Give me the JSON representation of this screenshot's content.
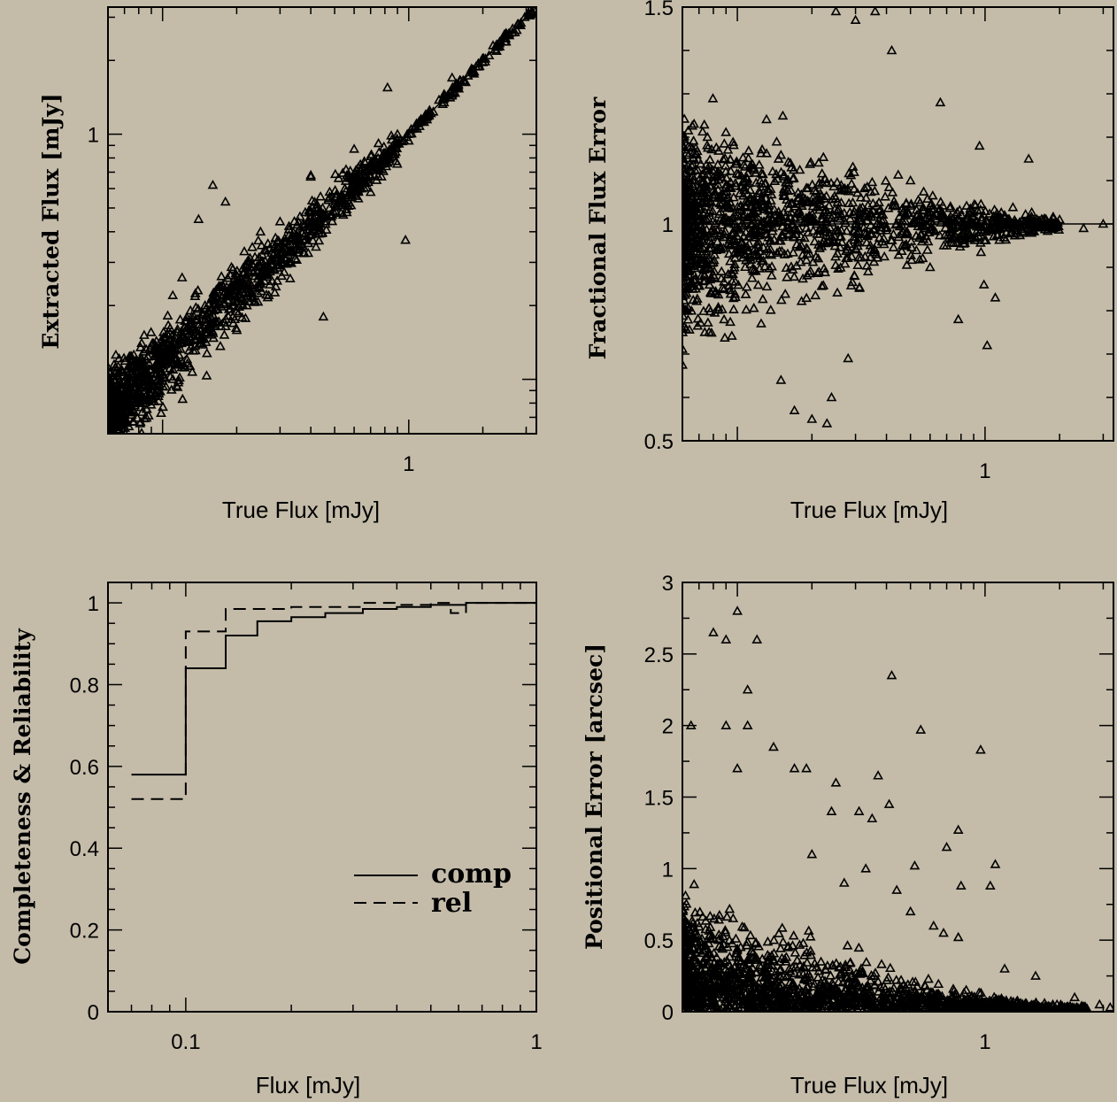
{
  "chart_data": [
    {
      "type": "scatter",
      "id": "p1",
      "xlabel": "True Flux [mJy]",
      "ylabel": "Extracted Flux [mJy]",
      "xscale": "log",
      "yscale": "log",
      "xlim": [
        0.06,
        3.3
      ],
      "ylim": [
        0.06,
        3.3
      ],
      "xticklabels": [
        {
          "value": 1,
          "label": "1"
        }
      ],
      "yticklabels": [
        {
          "value": 1,
          "label": "1"
        }
      ],
      "marker": "triangle",
      "line": {
        "x": [
          0.06,
          3.3
        ],
        "y": [
          0.06,
          3.3
        ]
      },
      "points": [
        [
          0.82,
          1.55
        ],
        [
          0.97,
          0.37
        ],
        [
          0.7,
          0.72
        ],
        [
          0.6,
          0.87
        ],
        [
          0.38,
          0.48
        ],
        [
          0.16,
          0.62
        ],
        [
          0.18,
          0.53
        ],
        [
          0.4,
          0.67
        ],
        [
          0.4,
          0.68
        ],
        [
          0.7,
          0.58
        ],
        [
          0.3,
          0.44
        ],
        [
          1.0,
          0.94
        ],
        [
          1.5,
          1.7
        ],
        [
          2.2,
          2.3
        ],
        [
          3.1,
          3.2
        ],
        [
          0.45,
          0.18
        ],
        [
          0.22,
          0.2
        ],
        [
          0.27,
          0.22
        ],
        [
          0.12,
          0.26
        ],
        [
          0.11,
          0.22
        ],
        [
          0.14,
          0.45
        ],
        [
          0.25,
          0.4
        ],
        [
          0.5,
          0.52
        ],
        [
          0.55,
          0.6
        ],
        [
          0.9,
          1.0
        ],
        [
          1.2,
          1.2
        ],
        [
          1.8,
          1.85
        ],
        [
          2.7,
          2.6
        ],
        [
          0.33,
          0.3
        ],
        [
          0.65,
          0.65
        ]
      ],
      "cloud": {
        "x_range": [
          0.06,
          0.9
        ],
        "scatter_dex": 0.08
      }
    },
    {
      "type": "scatter",
      "id": "p2",
      "xlabel": "True Flux [mJy]",
      "ylabel": "Fractional Flux Error",
      "xscale": "log",
      "yscale": "linear",
      "xlim": [
        0.06,
        3.3
      ],
      "ylim": [
        0.5,
        1.5
      ],
      "xticklabels": [
        {
          "value": 1,
          "label": "1"
        }
      ],
      "yticklabels": [
        {
          "value": 0.5,
          "label": "0.5"
        },
        {
          "value": 1,
          "label": "1"
        },
        {
          "value": 1.5,
          "label": "1.5"
        }
      ],
      "marker": "triangle",
      "line": {
        "x": [
          0.06,
          3.3
        ],
        "y": [
          1,
          1
        ]
      },
      "points": [
        [
          0.66,
          1.28
        ],
        [
          0.95,
          1.18
        ],
        [
          1.5,
          1.15
        ],
        [
          0.99,
          0.86
        ],
        [
          0.78,
          0.78
        ],
        [
          1.02,
          0.72
        ],
        [
          1.1,
          0.83
        ],
        [
          0.2,
          0.55
        ],
        [
          0.24,
          0.6
        ],
        [
          0.23,
          0.54
        ],
        [
          0.28,
          0.69
        ],
        [
          0.17,
          0.57
        ],
        [
          0.15,
          0.64
        ],
        [
          0.3,
          1.47
        ],
        [
          0.36,
          1.49
        ],
        [
          0.42,
          1.4
        ],
        [
          0.25,
          1.49
        ],
        [
          2.5,
          0.99
        ],
        [
          3.0,
          1.0
        ],
        [
          2.0,
          1.01
        ],
        [
          1.6,
          1.0
        ],
        [
          1.2,
          1.02
        ],
        [
          0.7,
          0.95
        ],
        [
          0.5,
          1.1
        ],
        [
          0.6,
          0.9
        ]
      ],
      "cloud": {
        "x_range": [
          0.06,
          2.0
        ],
        "scatter_sigma_at_min": 0.18
      }
    },
    {
      "type": "line",
      "id": "p3",
      "xlabel": "Flux [mJy]",
      "ylabel": "Completeness & Reliability",
      "xscale": "log",
      "xlim": [
        0.06,
        1.0
      ],
      "ylim": [
        0,
        1.05
      ],
      "xticklabels": [
        {
          "value": 0.1,
          "label": "0.1"
        },
        {
          "value": 1,
          "label": "1"
        }
      ],
      "yticklabels": [
        {
          "value": 0,
          "label": "0"
        },
        {
          "value": 0.2,
          "label": "0.2"
        },
        {
          "value": 0.4,
          "label": "0.4"
        },
        {
          "value": 0.6,
          "label": "0.6"
        },
        {
          "value": 0.8,
          "label": "0.8"
        },
        {
          "value": 1,
          "label": "1"
        }
      ],
      "series": [
        {
          "name": "comp",
          "style": "solid",
          "steps_x": [
            0.07,
            0.1,
            0.13,
            0.16,
            0.2,
            0.25,
            0.32,
            0.4,
            0.5,
            0.63,
            1.0
          ],
          "values": [
            0.58,
            0.84,
            0.92,
            0.955,
            0.965,
            0.975,
            0.985,
            0.99,
            0.995,
            1.0
          ]
        },
        {
          "name": "rel",
          "style": "dashed",
          "steps_x": [
            0.07,
            0.1,
            0.13,
            0.16,
            0.2,
            0.25,
            0.32,
            0.4,
            0.5,
            0.57,
            0.63,
            1.0
          ],
          "values": [
            0.52,
            0.93,
            0.985,
            0.985,
            0.99,
            0.99,
            1.0,
            0.995,
            1.0,
            0.975,
            1.0
          ]
        }
      ],
      "legend": [
        "comp",
        "rel"
      ]
    },
    {
      "type": "scatter",
      "id": "p4",
      "xlabel": "True Flux [mJy]",
      "ylabel": "Positional Error [arcsec]",
      "xscale": "log",
      "yscale": "linear",
      "xlim": [
        0.06,
        3.3
      ],
      "ylim": [
        0,
        3
      ],
      "xticklabels": [
        {
          "value": 1,
          "label": "1"
        }
      ],
      "yticklabels": [
        {
          "value": 0,
          "label": "0"
        },
        {
          "value": 0.5,
          "label": "0.5"
        },
        {
          "value": 1,
          "label": "1"
        },
        {
          "value": 1.5,
          "label": "1.5"
        },
        {
          "value": 2,
          "label": "2"
        },
        {
          "value": 2.5,
          "label": "2.5"
        },
        {
          "value": 3,
          "label": "3"
        }
      ],
      "marker": "triangle",
      "points": [
        [
          0.1,
          2.8
        ],
        [
          0.08,
          2.65
        ],
        [
          0.09,
          2.6
        ],
        [
          0.12,
          2.6
        ],
        [
          0.11,
          2.25
        ],
        [
          0.42,
          2.35
        ],
        [
          0.55,
          1.97
        ],
        [
          0.96,
          1.83
        ],
        [
          0.065,
          2.0
        ],
        [
          0.09,
          2.0
        ],
        [
          0.11,
          2.0
        ],
        [
          0.14,
          1.85
        ],
        [
          0.1,
          1.7
        ],
        [
          0.17,
          1.7
        ],
        [
          0.19,
          1.7
        ],
        [
          0.37,
          1.65
        ],
        [
          0.25,
          1.6
        ],
        [
          0.41,
          1.45
        ],
        [
          0.24,
          1.4
        ],
        [
          0.31,
          1.4
        ],
        [
          0.35,
          1.35
        ],
        [
          0.78,
          1.27
        ],
        [
          0.7,
          1.15
        ],
        [
          1.1,
          1.03
        ],
        [
          1.05,
          0.88
        ],
        [
          0.8,
          0.88
        ],
        [
          0.52,
          1.02
        ],
        [
          0.33,
          1.0
        ],
        [
          0.44,
          0.85
        ],
        [
          0.62,
          0.6
        ],
        [
          0.68,
          0.55
        ],
        [
          0.78,
          0.52
        ],
        [
          1.2,
          0.3
        ],
        [
          1.6,
          0.25
        ],
        [
          2.3,
          0.1
        ],
        [
          2.9,
          0.05
        ],
        [
          3.2,
          0.03
        ],
        [
          0.5,
          0.7
        ],
        [
          0.27,
          0.9
        ],
        [
          0.2,
          1.1
        ]
      ],
      "cloud": {
        "x_range": [
          0.06,
          2.6
        ],
        "scale_at_min": 1.0
      }
    }
  ]
}
